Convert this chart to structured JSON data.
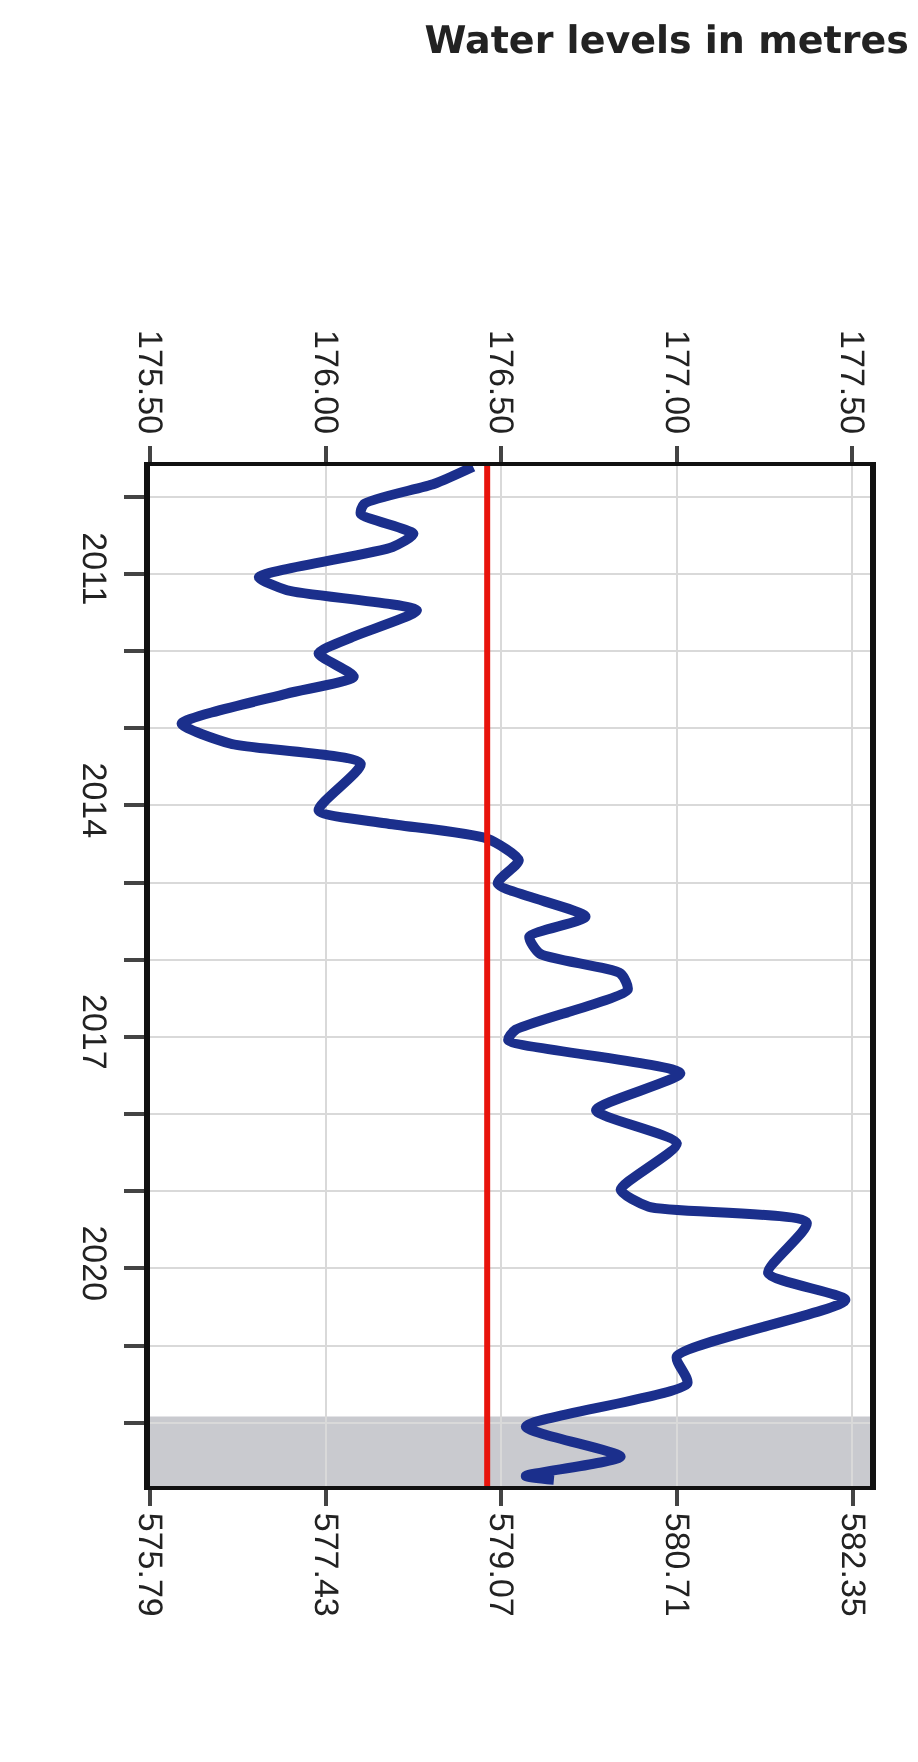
{
  "chart_data": {
    "type": "line",
    "title": "Water levels in metres",
    "series": [
      {
        "color": "#1b2f8c",
        "axis": "x2",
        "x": [
          176.42,
          176.31,
          176.11,
          176.1,
          176.25,
          176.19,
          175.81,
          175.89,
          176.26,
          176.08,
          175.98,
          176.08,
          175.89,
          175.59,
          175.73,
          176.1,
          175.98,
          176.17,
          176.46,
          176.55,
          176.49,
          176.74,
          176.58,
          176.61,
          176.84,
          176.86,
          176.54,
          176.52,
          177.01,
          176.77,
          177.0,
          176.84,
          176.92,
          177.37,
          177.26,
          177.48,
          177.0,
          177.03,
          176.57,
          176.84,
          176.57,
          176.65
        ],
        "values": [
          2009.61,
          2009.83,
          2010.09,
          2010.22,
          2010.48,
          2010.65,
          2011.04,
          2011.21,
          2011.47,
          2011.81,
          2012.03,
          2012.33,
          2012.55,
          2012.94,
          2013.2,
          2013.46,
          2014.06,
          2014.23,
          2014.43,
          2014.71,
          2015.01,
          2015.44,
          2015.7,
          2015.92,
          2016.18,
          2016.39,
          2016.91,
          2017.04,
          2017.47,
          2017.95,
          2018.38,
          2018.98,
          2019.2,
          2019.41,
          2020.06,
          2020.41,
          2021.14,
          2021.49,
          2022.05,
          2022.44,
          2022.69,
          2022.74
        ]
      }
    ],
    "ylim": [
      2022.82,
      2009.6
    ],
    "yticks": [
      {
        "value": 2010,
        "label": null
      },
      2011,
      {
        "value": 2012,
        "label": null
      },
      {
        "value": 2013,
        "label": null
      },
      2014,
      {
        "value": 2015,
        "label": null
      },
      {
        "value": 2016,
        "label": null
      },
      2017,
      {
        "value": 2018,
        "label": null
      },
      {
        "value": 2019,
        "label": null
      },
      2020,
      {
        "value": 2021,
        "label": null
      },
      {
        "value": 2022,
        "label": null
      }
    ],
    "x2lim": [
      175.5,
      177.55
    ],
    "x2ticks": [
      {
        "value": 175.5,
        "label": "175.50"
      },
      {
        "value": 176,
        "label": "176.00"
      },
      {
        "value": 176.5,
        "label": "176.50"
      },
      {
        "value": 177,
        "label": "177.00"
      },
      {
        "value": 177.5,
        "label": "177.50"
      }
    ],
    "xlim": [
      575.79,
      582.51
    ],
    "xticks": [
      575.79,
      577.43,
      579.07,
      580.71,
      582.35
    ],
    "ref_lines": [
      {
        "axis": "x2",
        "value": 176.46,
        "color": "#e8140c"
      }
    ],
    "bands": [
      {
        "axis": "y",
        "from": 2021.92,
        "to": 2022.82,
        "color": "#c9cacf"
      }
    ],
    "grid": true,
    "line_style": "solid"
  }
}
